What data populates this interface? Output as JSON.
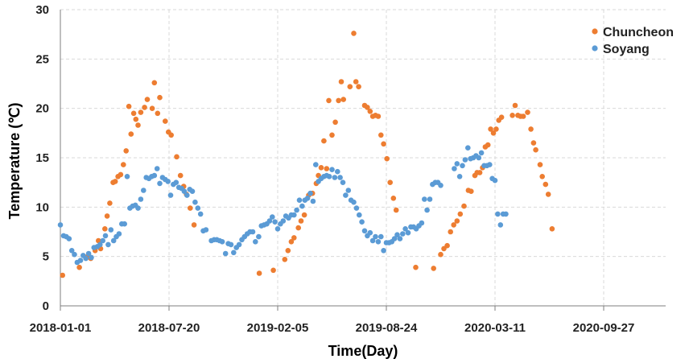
{
  "chart_data": {
    "type": "scatter",
    "xlabel": "Time(Day)",
    "ylabel": "Temperature (℃)",
    "ylim": [
      0,
      30
    ],
    "yticks": [
      0,
      5,
      10,
      15,
      20,
      25,
      30
    ],
    "xlim": [
      "2018-01-01",
      "2020-12-31"
    ],
    "xticks": [
      "2018-01-01",
      "2018-07-20",
      "2019-02-05",
      "2019-08-24",
      "2020-03-11",
      "2020-09-27"
    ],
    "grid": "dashed",
    "legend_position": "top-right",
    "series": [
      {
        "name": "Chuncheon",
        "color": "#ED7D31",
        "points": [
          [
            "2018-01-05",
            3.1
          ],
          [
            "2018-02-05",
            3.9
          ],
          [
            "2018-02-20",
            5.0
          ],
          [
            "2018-02-26",
            4.8
          ],
          [
            "2018-03-06",
            5.6
          ],
          [
            "2018-03-12",
            6.6
          ],
          [
            "2018-03-16",
            5.8
          ],
          [
            "2018-03-24",
            7.8
          ],
          [
            "2018-03-28",
            9.1
          ],
          [
            "2018-04-02",
            10.4
          ],
          [
            "2018-04-08",
            12.5
          ],
          [
            "2018-04-12",
            12.6
          ],
          [
            "2018-04-17",
            13.1
          ],
          [
            "2018-04-22",
            13.3
          ],
          [
            "2018-04-27",
            14.3
          ],
          [
            "2018-05-02",
            15.7
          ],
          [
            "2018-05-07",
            20.2
          ],
          [
            "2018-05-11",
            17.4
          ],
          [
            "2018-05-16",
            19.5
          ],
          [
            "2018-05-20",
            18.9
          ],
          [
            "2018-05-24",
            18.3
          ],
          [
            "2018-05-29",
            19.6
          ],
          [
            "2018-06-05",
            20.1
          ],
          [
            "2018-06-10",
            20.9
          ],
          [
            "2018-06-19",
            20.0
          ],
          [
            "2018-06-23",
            22.6
          ],
          [
            "2018-06-29",
            19.5
          ],
          [
            "2018-07-03",
            21.1
          ],
          [
            "2018-07-13",
            18.7
          ],
          [
            "2018-07-19",
            17.6
          ],
          [
            "2018-07-24",
            17.3
          ],
          [
            "2018-08-03",
            15.1
          ],
          [
            "2018-08-10",
            13.2
          ],
          [
            "2018-08-16",
            12.1
          ],
          [
            "2018-08-21",
            11.3
          ],
          [
            "2018-08-28",
            9.9
          ],
          [
            "2018-09-04",
            8.2
          ],
          [
            "2019-01-02",
            3.3
          ],
          [
            "2019-01-28",
            3.6
          ],
          [
            "2019-02-18",
            4.7
          ],
          [
            "2019-02-24",
            5.6
          ],
          [
            "2019-03-02",
            6.5
          ],
          [
            "2019-03-07",
            6.9
          ],
          [
            "2019-03-15",
            7.9
          ],
          [
            "2019-03-20",
            8.6
          ],
          [
            "2019-03-26",
            9.2
          ],
          [
            "2019-04-03",
            11.2
          ],
          [
            "2019-04-10",
            11.4
          ],
          [
            "2019-04-17",
            12.4
          ],
          [
            "2019-04-21",
            13.2
          ],
          [
            "2019-04-26",
            14.0
          ],
          [
            "2019-05-01",
            16.7
          ],
          [
            "2019-05-06",
            13.9
          ],
          [
            "2019-05-10",
            20.8
          ],
          [
            "2019-05-16",
            17.3
          ],
          [
            "2019-05-22",
            18.6
          ],
          [
            "2019-05-28",
            20.8
          ],
          [
            "2019-06-02",
            22.7
          ],
          [
            "2019-06-06",
            20.9
          ],
          [
            "2019-06-18",
            22.2
          ],
          [
            "2019-06-25",
            27.6
          ],
          [
            "2019-06-29",
            22.7
          ],
          [
            "2019-07-04",
            22.2
          ],
          [
            "2019-07-15",
            20.3
          ],
          [
            "2019-07-20",
            20.1
          ],
          [
            "2019-07-25",
            19.7
          ],
          [
            "2019-07-30",
            19.2
          ],
          [
            "2019-08-04",
            19.3
          ],
          [
            "2019-08-09",
            19.2
          ],
          [
            "2019-08-14",
            17.3
          ],
          [
            "2019-08-19",
            16.4
          ],
          [
            "2019-08-25",
            14.9
          ],
          [
            "2019-08-31",
            12.5
          ],
          [
            "2019-09-06",
            10.9
          ],
          [
            "2019-09-11",
            9.7
          ],
          [
            "2019-10-17",
            3.9
          ],
          [
            "2019-11-19",
            3.8
          ],
          [
            "2019-12-02",
            5.2
          ],
          [
            "2019-12-08",
            5.8
          ],
          [
            "2019-12-14",
            6.1
          ],
          [
            "2019-12-20",
            7.5
          ],
          [
            "2019-12-26",
            8.2
          ],
          [
            "2020-01-01",
            8.6
          ],
          [
            "2020-01-07",
            9.3
          ],
          [
            "2020-01-14",
            10.1
          ],
          [
            "2020-01-22",
            11.7
          ],
          [
            "2020-01-27",
            11.6
          ],
          [
            "2020-02-03",
            13.2
          ],
          [
            "2020-02-07",
            13.5
          ],
          [
            "2020-02-12",
            13.5
          ],
          [
            "2020-02-17",
            14.0
          ],
          [
            "2020-02-22",
            16.1
          ],
          [
            "2020-02-27",
            16.3
          ],
          [
            "2020-03-03",
            17.9
          ],
          [
            "2020-03-08",
            17.5
          ],
          [
            "2020-03-13",
            17.9
          ],
          [
            "2020-03-18",
            18.8
          ],
          [
            "2020-03-23",
            19.1
          ],
          [
            "2020-04-12",
            19.3
          ],
          [
            "2020-04-17",
            20.3
          ],
          [
            "2020-04-22",
            19.3
          ],
          [
            "2020-04-27",
            19.2
          ],
          [
            "2020-05-02",
            19.2
          ],
          [
            "2020-05-10",
            19.6
          ],
          [
            "2020-05-16",
            17.9
          ],
          [
            "2020-05-21",
            16.5
          ],
          [
            "2020-05-25",
            15.8
          ],
          [
            "2020-06-02",
            14.3
          ],
          [
            "2020-06-06",
            13.1
          ],
          [
            "2020-06-12",
            12.3
          ],
          [
            "2020-06-17",
            11.3
          ],
          [
            "2020-06-24",
            7.8
          ]
        ]
      },
      {
        "name": "Soyang",
        "color": "#5B9BD5",
        "points": [
          [
            "2018-01-01",
            8.2
          ],
          [
            "2018-01-07",
            7.1
          ],
          [
            "2018-01-12",
            7.0
          ],
          [
            "2018-01-17",
            6.8
          ],
          [
            "2018-01-22",
            5.6
          ],
          [
            "2018-01-27",
            5.2
          ],
          [
            "2018-02-01",
            4.4
          ],
          [
            "2018-02-07",
            4.6
          ],
          [
            "2018-02-12",
            5.1
          ],
          [
            "2018-02-17",
            4.8
          ],
          [
            "2018-02-22",
            5.3
          ],
          [
            "2018-02-27",
            4.9
          ],
          [
            "2018-03-04",
            5.9
          ],
          [
            "2018-03-10",
            6.0
          ],
          [
            "2018-03-15",
            6.2
          ],
          [
            "2018-03-20",
            6.6
          ],
          [
            "2018-03-25",
            7.1
          ],
          [
            "2018-03-30",
            6.2
          ],
          [
            "2018-04-04",
            7.7
          ],
          [
            "2018-04-09",
            6.6
          ],
          [
            "2018-04-14",
            7.0
          ],
          [
            "2018-04-19",
            7.3
          ],
          [
            "2018-04-24",
            8.3
          ],
          [
            "2018-04-29",
            8.3
          ],
          [
            "2018-05-04",
            13.1
          ],
          [
            "2018-05-09",
            9.9
          ],
          [
            "2018-05-14",
            10.1
          ],
          [
            "2018-05-19",
            10.2
          ],
          [
            "2018-05-24",
            9.9
          ],
          [
            "2018-05-29",
            10.8
          ],
          [
            "2018-06-03",
            11.7
          ],
          [
            "2018-06-08",
            13.0
          ],
          [
            "2018-06-13",
            12.9
          ],
          [
            "2018-06-18",
            13.1
          ],
          [
            "2018-06-23",
            13.2
          ],
          [
            "2018-06-28",
            13.9
          ],
          [
            "2018-07-03",
            12.4
          ],
          [
            "2018-07-08",
            13.0
          ],
          [
            "2018-07-13",
            12.8
          ],
          [
            "2018-07-18",
            12.6
          ],
          [
            "2018-07-23",
            11.2
          ],
          [
            "2018-07-28",
            12.3
          ],
          [
            "2018-08-02",
            12.5
          ],
          [
            "2018-08-07",
            12.0
          ],
          [
            "2018-08-12",
            11.9
          ],
          [
            "2018-08-17",
            11.6
          ],
          [
            "2018-08-22",
            11.2
          ],
          [
            "2018-08-27",
            11.8
          ],
          [
            "2018-09-01",
            11.6
          ],
          [
            "2018-09-06",
            10.5
          ],
          [
            "2018-09-11",
            9.9
          ],
          [
            "2018-09-16",
            9.3
          ],
          [
            "2018-09-21",
            7.6
          ],
          [
            "2018-09-26",
            7.7
          ],
          [
            "2018-10-06",
            6.6
          ],
          [
            "2018-10-11",
            6.7
          ],
          [
            "2018-10-16",
            6.7
          ],
          [
            "2018-10-21",
            6.6
          ],
          [
            "2018-10-26",
            6.5
          ],
          [
            "2018-11-01",
            5.3
          ],
          [
            "2018-11-06",
            6.3
          ],
          [
            "2018-11-11",
            6.2
          ],
          [
            "2018-11-16",
            5.4
          ],
          [
            "2018-11-21",
            5.9
          ],
          [
            "2018-11-26",
            6.2
          ],
          [
            "2018-12-01",
            6.7
          ],
          [
            "2018-12-06",
            7.0
          ],
          [
            "2018-12-11",
            7.3
          ],
          [
            "2018-12-16",
            7.5
          ],
          [
            "2018-12-21",
            7.5
          ],
          [
            "2018-12-26",
            6.5
          ],
          [
            "2019-01-01",
            7.0
          ],
          [
            "2019-01-06",
            8.1
          ],
          [
            "2019-01-11",
            8.2
          ],
          [
            "2019-01-16",
            8.3
          ],
          [
            "2019-01-21",
            8.6
          ],
          [
            "2019-01-26",
            9.0
          ],
          [
            "2019-01-31",
            8.5
          ],
          [
            "2019-02-05",
            7.8
          ],
          [
            "2019-02-10",
            8.3
          ],
          [
            "2019-02-15",
            8.6
          ],
          [
            "2019-02-20",
            9.1
          ],
          [
            "2019-02-25",
            8.9
          ],
          [
            "2019-03-02",
            9.2
          ],
          [
            "2019-03-07",
            9.2
          ],
          [
            "2019-03-12",
            9.7
          ],
          [
            "2019-03-17",
            10.7
          ],
          [
            "2019-03-22",
            10.1
          ],
          [
            "2019-03-27",
            10.7
          ],
          [
            "2019-04-01",
            10.9
          ],
          [
            "2019-04-06",
            11.4
          ],
          [
            "2019-04-11",
            10.6
          ],
          [
            "2019-04-16",
            14.3
          ],
          [
            "2019-04-21",
            12.6
          ],
          [
            "2019-04-26",
            12.9
          ],
          [
            "2019-05-01",
            13.1
          ],
          [
            "2019-05-06",
            13.2
          ],
          [
            "2019-05-11",
            13.1
          ],
          [
            "2019-05-16",
            13.8
          ],
          [
            "2019-05-21",
            13.0
          ],
          [
            "2019-05-26",
            13.6
          ],
          [
            "2019-05-31",
            13.0
          ],
          [
            "2019-06-05",
            12.5
          ],
          [
            "2019-06-10",
            11.2
          ],
          [
            "2019-06-15",
            11.7
          ],
          [
            "2019-06-20",
            10.7
          ],
          [
            "2019-06-25",
            10.5
          ],
          [
            "2019-06-30",
            9.9
          ],
          [
            "2019-07-05",
            9.2
          ],
          [
            "2019-07-10",
            8.5
          ],
          [
            "2019-07-15",
            7.6
          ],
          [
            "2019-07-20",
            7.1
          ],
          [
            "2019-07-25",
            7.4
          ],
          [
            "2019-07-30",
            6.6
          ],
          [
            "2019-08-04",
            7.0
          ],
          [
            "2019-08-09",
            6.5
          ],
          [
            "2019-08-14",
            7.0
          ],
          [
            "2019-08-19",
            5.6
          ],
          [
            "2019-08-24",
            6.4
          ],
          [
            "2019-08-29",
            6.4
          ],
          [
            "2019-09-03",
            6.5
          ],
          [
            "2019-09-08",
            6.8
          ],
          [
            "2019-09-13",
            7.2
          ],
          [
            "2019-09-18",
            6.8
          ],
          [
            "2019-09-23",
            7.3
          ],
          [
            "2019-09-28",
            7.8
          ],
          [
            "2019-10-03",
            7.4
          ],
          [
            "2019-10-08",
            8.0
          ],
          [
            "2019-10-13",
            8.0
          ],
          [
            "2019-10-18",
            7.8
          ],
          [
            "2019-10-23",
            8.1
          ],
          [
            "2019-10-28",
            8.4
          ],
          [
            "2019-11-02",
            10.8
          ],
          [
            "2019-11-07",
            9.7
          ],
          [
            "2019-11-12",
            10.8
          ],
          [
            "2019-11-17",
            12.3
          ],
          [
            "2019-11-22",
            12.5
          ],
          [
            "2019-11-27",
            12.5
          ],
          [
            "2019-12-02",
            12.2
          ],
          [
            "2019-12-27",
            13.9
          ],
          [
            "2020-01-01",
            14.4
          ],
          [
            "2020-01-06",
            13.1
          ],
          [
            "2020-01-11",
            14.2
          ],
          [
            "2020-01-16",
            14.8
          ],
          [
            "2020-01-21",
            16.0
          ],
          [
            "2020-01-26",
            14.9
          ],
          [
            "2020-01-31",
            15.0
          ],
          [
            "2020-02-05",
            15.2
          ],
          [
            "2020-02-10",
            15.0
          ],
          [
            "2020-02-15",
            15.5
          ],
          [
            "2020-02-20",
            14.2
          ],
          [
            "2020-02-25",
            14.2
          ],
          [
            "2020-03-01",
            14.3
          ],
          [
            "2020-03-06",
            12.9
          ],
          [
            "2020-03-11",
            12.7
          ],
          [
            "2020-03-16",
            9.3
          ],
          [
            "2020-03-21",
            8.2
          ],
          [
            "2020-03-26",
            9.3
          ],
          [
            "2020-03-31",
            9.3
          ]
        ]
      }
    ]
  }
}
